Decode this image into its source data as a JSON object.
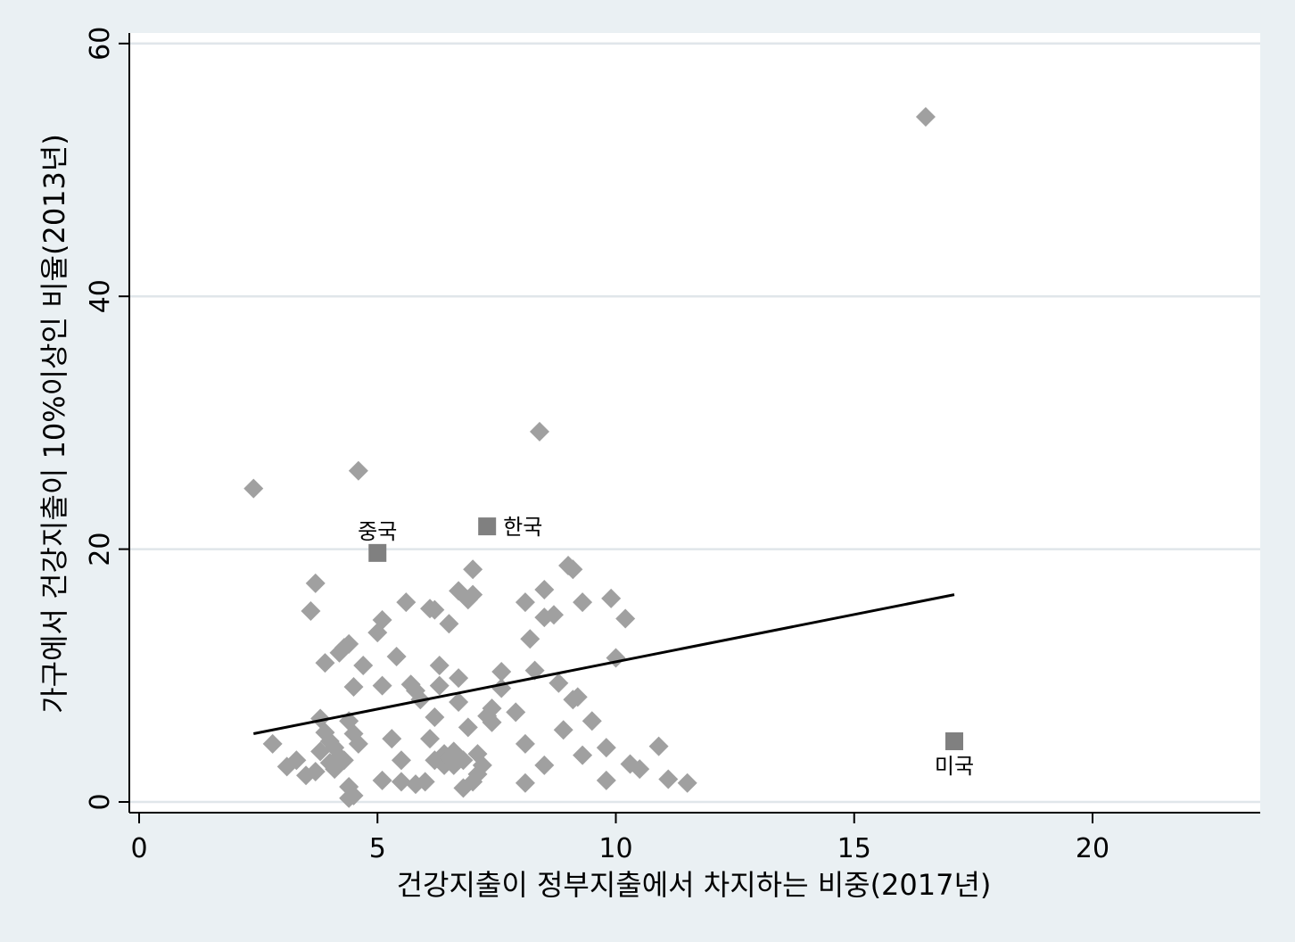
{
  "chart_data": {
    "type": "scatter",
    "xlabel": "건강지출이 정부지출에서 차지하는 비중(2017년)",
    "ylabel": "가구에서 건강지출이 10%이상인 비율(2013년)",
    "xlim": [
      0,
      23.5
    ],
    "ylim": [
      0,
      60
    ],
    "x_ticks": [
      0,
      5,
      10,
      15,
      20
    ],
    "y_ticks": [
      0,
      20,
      40,
      60
    ],
    "grid": "horizontal",
    "colors": {
      "background": "#eaf0f3",
      "plot_area": "#ffffff",
      "gridline": "#e0e6ea",
      "points": "#a0a0a0",
      "highlight": "#808080",
      "fit_line": "#000000"
    },
    "highlighted": [
      {
        "label": "중국",
        "x": 5.0,
        "y": 19.7,
        "label_pos": "above"
      },
      {
        "label": "한국",
        "x": 7.3,
        "y": 21.8,
        "label_pos": "right"
      },
      {
        "label": "미국",
        "x": 17.1,
        "y": 4.8,
        "label_pos": "below"
      }
    ],
    "fit_line": {
      "x": [
        2.4,
        17.1
      ],
      "y": [
        5.4,
        16.4
      ]
    },
    "points": [
      {
        "x": 2.4,
        "y": 24.8
      },
      {
        "x": 4.6,
        "y": 26.2
      },
      {
        "x": 8.4,
        "y": 29.3
      },
      {
        "x": 16.5,
        "y": 54.2
      },
      {
        "x": 2.8,
        "y": 4.6
      },
      {
        "x": 3.1,
        "y": 2.8
      },
      {
        "x": 3.3,
        "y": 3.3
      },
      {
        "x": 3.5,
        "y": 2.1
      },
      {
        "x": 3.6,
        "y": 15.1
      },
      {
        "x": 3.7,
        "y": 17.3
      },
      {
        "x": 3.7,
        "y": 2.4
      },
      {
        "x": 3.8,
        "y": 6.6
      },
      {
        "x": 3.8,
        "y": 4.0
      },
      {
        "x": 3.9,
        "y": 11.0
      },
      {
        "x": 3.9,
        "y": 5.5
      },
      {
        "x": 4.0,
        "y": 4.8
      },
      {
        "x": 4.0,
        "y": 3.1
      },
      {
        "x": 4.1,
        "y": 2.6
      },
      {
        "x": 4.1,
        "y": 4.3
      },
      {
        "x": 4.2,
        "y": 11.8
      },
      {
        "x": 4.2,
        "y": 3.6
      },
      {
        "x": 4.3,
        "y": 12.2
      },
      {
        "x": 4.3,
        "y": 3.3
      },
      {
        "x": 4.4,
        "y": 12.5
      },
      {
        "x": 4.4,
        "y": 6.4
      },
      {
        "x": 4.4,
        "y": 1.2
      },
      {
        "x": 4.4,
        "y": 0.3
      },
      {
        "x": 4.5,
        "y": 9.1
      },
      {
        "x": 4.5,
        "y": 5.4
      },
      {
        "x": 4.5,
        "y": 0.5
      },
      {
        "x": 4.6,
        "y": 4.6
      },
      {
        "x": 4.7,
        "y": 10.8
      },
      {
        "x": 5.0,
        "y": 13.4
      },
      {
        "x": 5.1,
        "y": 14.4
      },
      {
        "x": 5.1,
        "y": 9.2
      },
      {
        "x": 5.1,
        "y": 1.7
      },
      {
        "x": 5.3,
        "y": 5.0
      },
      {
        "x": 5.4,
        "y": 11.5
      },
      {
        "x": 5.5,
        "y": 3.3
      },
      {
        "x": 5.5,
        "y": 1.6
      },
      {
        "x": 5.6,
        "y": 15.8
      },
      {
        "x": 5.7,
        "y": 9.3
      },
      {
        "x": 5.8,
        "y": 8.8
      },
      {
        "x": 5.8,
        "y": 1.4
      },
      {
        "x": 5.9,
        "y": 8.1
      },
      {
        "x": 6.0,
        "y": 1.6
      },
      {
        "x": 6.1,
        "y": 15.3
      },
      {
        "x": 6.1,
        "y": 5.0
      },
      {
        "x": 6.2,
        "y": 15.2
      },
      {
        "x": 6.2,
        "y": 6.7
      },
      {
        "x": 6.2,
        "y": 3.3
      },
      {
        "x": 6.3,
        "y": 10.8
      },
      {
        "x": 6.3,
        "y": 9.2
      },
      {
        "x": 6.4,
        "y": 3.8
      },
      {
        "x": 6.4,
        "y": 2.9
      },
      {
        "x": 6.5,
        "y": 14.1
      },
      {
        "x": 6.5,
        "y": 3.5
      },
      {
        "x": 6.6,
        "y": 4.0
      },
      {
        "x": 6.6,
        "y": 2.9
      },
      {
        "x": 6.7,
        "y": 16.7
      },
      {
        "x": 6.7,
        "y": 9.8
      },
      {
        "x": 6.7,
        "y": 7.9
      },
      {
        "x": 6.8,
        "y": 3.3
      },
      {
        "x": 6.8,
        "y": 1.1
      },
      {
        "x": 6.9,
        "y": 16.0
      },
      {
        "x": 6.9,
        "y": 5.9
      },
      {
        "x": 7.0,
        "y": 18.4
      },
      {
        "x": 7.0,
        "y": 16.4
      },
      {
        "x": 7.0,
        "y": 1.6
      },
      {
        "x": 7.1,
        "y": 3.8
      },
      {
        "x": 7.1,
        "y": 2.2
      },
      {
        "x": 7.2,
        "y": 2.9
      },
      {
        "x": 7.3,
        "y": 6.8
      },
      {
        "x": 7.4,
        "y": 6.3
      },
      {
        "x": 7.4,
        "y": 7.4
      },
      {
        "x": 7.6,
        "y": 10.3
      },
      {
        "x": 7.6,
        "y": 9.0
      },
      {
        "x": 7.9,
        "y": 7.1
      },
      {
        "x": 8.1,
        "y": 15.8
      },
      {
        "x": 8.1,
        "y": 4.6
      },
      {
        "x": 8.1,
        "y": 1.5
      },
      {
        "x": 8.2,
        "y": 12.9
      },
      {
        "x": 8.3,
        "y": 10.4
      },
      {
        "x": 8.5,
        "y": 16.8
      },
      {
        "x": 8.5,
        "y": 14.6
      },
      {
        "x": 8.5,
        "y": 2.9
      },
      {
        "x": 8.7,
        "y": 14.8
      },
      {
        "x": 8.8,
        "y": 9.4
      },
      {
        "x": 8.9,
        "y": 5.7
      },
      {
        "x": 9.0,
        "y": 18.7
      },
      {
        "x": 9.1,
        "y": 18.4
      },
      {
        "x": 9.1,
        "y": 8.1
      },
      {
        "x": 9.2,
        "y": 8.3
      },
      {
        "x": 9.3,
        "y": 15.8
      },
      {
        "x": 9.3,
        "y": 3.7
      },
      {
        "x": 9.5,
        "y": 6.4
      },
      {
        "x": 9.8,
        "y": 4.3
      },
      {
        "x": 9.8,
        "y": 1.7
      },
      {
        "x": 9.9,
        "y": 16.1
      },
      {
        "x": 10.0,
        "y": 11.4
      },
      {
        "x": 10.2,
        "y": 14.5
      },
      {
        "x": 10.3,
        "y": 3.0
      },
      {
        "x": 10.5,
        "y": 2.6
      },
      {
        "x": 10.9,
        "y": 4.4
      },
      {
        "x": 11.1,
        "y": 1.8
      },
      {
        "x": 11.5,
        "y": 1.5
      }
    ]
  }
}
